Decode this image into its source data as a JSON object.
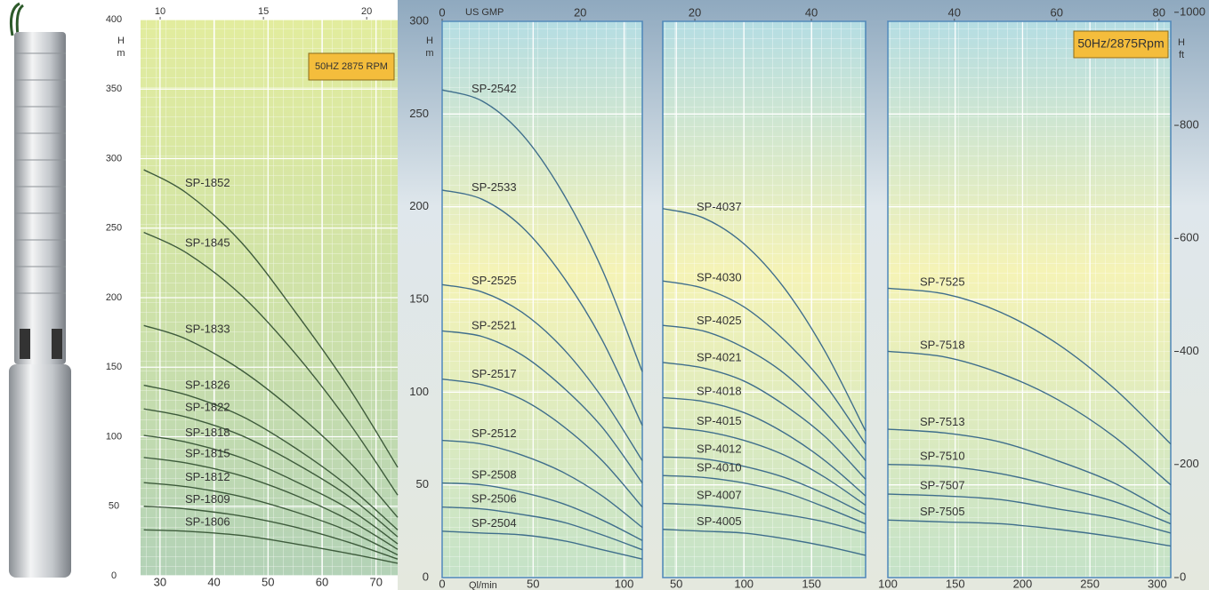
{
  "chart_data": [
    {
      "type": "line",
      "ylabel": [
        "H",
        "m"
      ],
      "annotation": "50HZ 2875 RPM",
      "color": "#3e5b3c",
      "grid": true,
      "x": [
        27,
        35,
        45,
        55,
        65,
        74
      ],
      "xlim": [
        26.4,
        74
      ],
      "xticks": [
        30,
        40,
        50,
        60,
        70
      ],
      "x2lim": [
        9.05,
        21.5
      ],
      "x2ticks": [
        10,
        15,
        20
      ],
      "ylim": [
        0,
        400
      ],
      "yticks": [
        0,
        50,
        100,
        150,
        200,
        250,
        300,
        350,
        400
      ],
      "series": [
        {
          "name": "SP-1852",
          "values": [
            292,
            275,
            240,
            190,
            135,
            78
          ]
        },
        {
          "name": "SP-1845",
          "values": [
            247,
            232,
            202,
            160,
            110,
            58
          ]
        },
        {
          "name": "SP-1833",
          "values": [
            180,
            170,
            148,
            118,
            82,
            42
          ]
        },
        {
          "name": "SP-1826",
          "values": [
            137,
            130,
            115,
            92,
            64,
            33
          ]
        },
        {
          "name": "SP-1822",
          "values": [
            120,
            114,
            101,
            81,
            57,
            28
          ]
        },
        {
          "name": "SP-1818",
          "values": [
            101,
            96,
            85,
            68,
            48,
            23
          ]
        },
        {
          "name": "SP-1815",
          "values": [
            85,
            81,
            72,
            58,
            40,
            19
          ]
        },
        {
          "name": "SP-1812",
          "values": [
            67,
            64,
            57,
            46,
            32,
            15
          ]
        },
        {
          "name": "SP-1809",
          "values": [
            50,
            48,
            43,
            35,
            24,
            12
          ]
        },
        {
          "name": "SP-1806",
          "values": [
            33,
            32,
            29,
            23,
            16,
            9
          ]
        }
      ]
    },
    {
      "type": "line",
      "ylabel": [
        "H",
        "m"
      ],
      "xlabel": "Ql/min",
      "x2label": "US GMP",
      "color": "#3f6e8c",
      "grid": true,
      "x": [
        0,
        22,
        44,
        66,
        88,
        110
      ],
      "xlim": [
        0,
        110
      ],
      "xticks": [
        0,
        50,
        100
      ],
      "x2lim": [
        0,
        29
      ],
      "x2ticks": [
        0,
        20
      ],
      "ylim": [
        0,
        300
      ],
      "yticks": [
        0,
        50,
        100,
        150,
        200,
        250,
        300
      ],
      "series": [
        {
          "name": "SP-2542",
          "values": [
            263,
            257,
            239,
            208,
            166,
            111
          ]
        },
        {
          "name": "SP-2533",
          "values": [
            209,
            204,
            189,
            163,
            128,
            82
          ]
        },
        {
          "name": "SP-2525",
          "values": [
            158,
            154,
            143,
            124,
            97,
            63
          ]
        },
        {
          "name": "SP-2521",
          "values": [
            133,
            130,
            120,
            103,
            81,
            51
          ]
        },
        {
          "name": "SP-2517",
          "values": [
            107,
            104,
            96,
            82,
            63,
            38
          ]
        },
        {
          "name": "SP-2512",
          "values": [
            74,
            72,
            66,
            57,
            44,
            27
          ]
        },
        {
          "name": "SP-2508",
          "values": [
            51,
            50,
            46,
            40,
            31,
            20
          ]
        },
        {
          "name": "SP-2506",
          "values": [
            38,
            37,
            34,
            30,
            23,
            15
          ]
        },
        {
          "name": "SP-2504",
          "values": [
            25,
            24,
            23,
            20,
            15,
            10
          ]
        }
      ]
    },
    {
      "type": "line",
      "color": "#3f6e8c",
      "grid": true,
      "x": [
        40,
        70,
        100,
        130,
        160,
        190
      ],
      "xlim": [
        40,
        190
      ],
      "xticks": [
        50,
        100,
        150
      ],
      "x2lim": [
        14.5,
        49.3
      ],
      "x2ticks": [
        20,
        40
      ],
      "ylim": [
        0,
        300
      ],
      "series": [
        {
          "name": "SP-4037",
          "values": [
            199,
            194,
            180,
            156,
            122,
            79
          ]
        },
        {
          "name": "SP-4030",
          "values": [
            160,
            156,
            146,
            128,
            104,
            72
          ]
        },
        {
          "name": "SP-4025",
          "values": [
            136,
            133,
            124,
            110,
            89,
            63
          ]
        },
        {
          "name": "SP-4021",
          "values": [
            116,
            113,
            106,
            93,
            76,
            53
          ]
        },
        {
          "name": "SP-4018",
          "values": [
            97,
            95,
            89,
            78,
            63,
            44
          ]
        },
        {
          "name": "SP-4015",
          "values": [
            81,
            79,
            74,
            66,
            54,
            39
          ]
        },
        {
          "name": "SP-4012",
          "values": [
            65,
            64,
            60,
            54,
            45,
            34
          ]
        },
        {
          "name": "SP-4010",
          "values": [
            55,
            54,
            51,
            46,
            38,
            29
          ]
        },
        {
          "name": "SP-4007",
          "values": [
            40,
            39,
            37,
            34,
            30,
            24
          ]
        },
        {
          "name": "SP-4005",
          "values": [
            26,
            25,
            24,
            21,
            17,
            12
          ]
        }
      ]
    },
    {
      "type": "line",
      "annotation": "50Hz/2875Rpm",
      "y2label": [
        "H",
        "ft"
      ],
      "color": "#3f6e8c",
      "grid": true,
      "x": [
        100,
        142,
        184,
        226,
        268,
        310
      ],
      "xlim": [
        100,
        310
      ],
      "xticks": [
        100,
        150,
        200,
        250,
        300
      ],
      "x2lim": [
        27,
        82.3
      ],
      "x2ticks": [
        40,
        60,
        80
      ],
      "ylim": [
        0,
        300
      ],
      "y2lim": [
        0,
        984
      ],
      "y2ticks": [
        0,
        200,
        400,
        600,
        800,
        1000
      ],
      "series": [
        {
          "name": "SP-7525",
          "values": [
            156,
            153,
            143,
            126,
            102,
            72
          ]
        },
        {
          "name": "SP-7518",
          "values": [
            122,
            119,
            110,
            96,
            76,
            50
          ]
        },
        {
          "name": "SP-7513",
          "values": [
            80,
            78,
            73,
            63,
            51,
            34
          ]
        },
        {
          "name": "SP-7510",
          "values": [
            61,
            60,
            56,
            49,
            41,
            29
          ]
        },
        {
          "name": "SP-7507",
          "values": [
            45,
            44,
            42,
            37,
            32,
            24
          ]
        },
        {
          "name": "SP-7505",
          "values": [
            31,
            30,
            29,
            26,
            22,
            17
          ]
        }
      ]
    }
  ]
}
